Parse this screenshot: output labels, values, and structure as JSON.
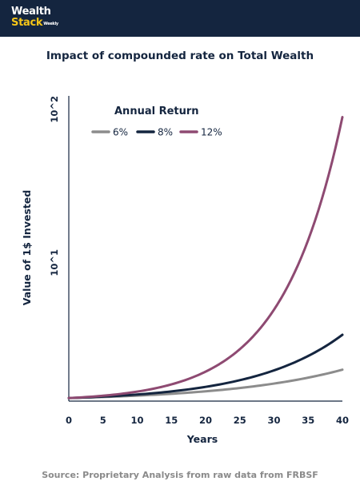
{
  "brand": {
    "line1": "Wealth",
    "line2": "Stack",
    "suffix": "Weekly"
  },
  "source": "Source: Proprietary Analysis from raw data from FRBSF",
  "chart_data": {
    "type": "line",
    "title": "Impact of compounded rate on Total Wealth",
    "xlabel": "Years",
    "ylabel": "Value of 1$ Invested",
    "ylabel_tick_labels": [
      "10^1",
      "10^2"
    ],
    "y_scale": "linear",
    "xlim": [
      0,
      40
    ],
    "ylim": [
      0,
      100
    ],
    "xticks": [
      0,
      5,
      10,
      15,
      20,
      25,
      30,
      35,
      40
    ],
    "grid": false,
    "legend": {
      "title": "Annual Return",
      "placement": "top-left"
    },
    "series": [
      {
        "name": "6%",
        "rate": 0.06,
        "color": "#8c8c8c",
        "x": [
          0,
          5,
          10,
          15,
          20,
          25,
          30,
          35,
          40
        ],
        "values": [
          1.0,
          1.34,
          1.79,
          2.4,
          3.21,
          4.29,
          5.74,
          7.69,
          10.29
        ]
      },
      {
        "name": "8%",
        "rate": 0.08,
        "color": "#14253f",
        "x": [
          0,
          5,
          10,
          15,
          20,
          25,
          30,
          35,
          40
        ],
        "values": [
          1.0,
          1.47,
          2.16,
          3.17,
          4.66,
          6.85,
          10.06,
          14.79,
          21.72
        ]
      },
      {
        "name": "12%",
        "rate": 0.12,
        "color": "#8e4a72",
        "x": [
          0,
          5,
          10,
          15,
          20,
          25,
          30,
          35,
          40
        ],
        "values": [
          1.0,
          1.76,
          3.11,
          5.47,
          9.65,
          17.0,
          29.96,
          52.8,
          93.05
        ]
      }
    ]
  }
}
